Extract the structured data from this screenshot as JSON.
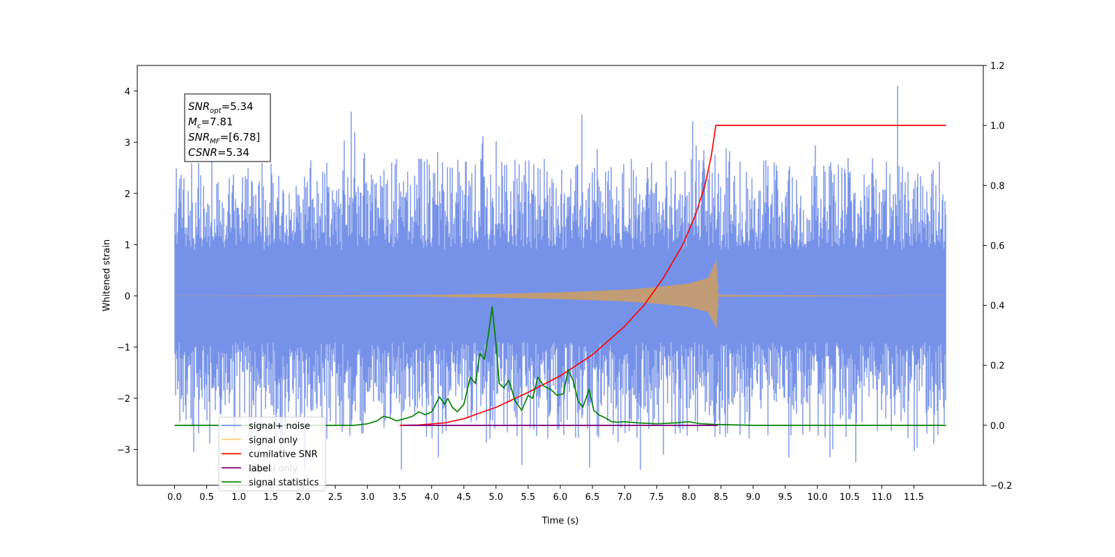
{
  "chart_data": {
    "type": "line",
    "title": "",
    "xlabel": "Time (s)",
    "ylabel": "Whitened strain",
    "y2label": "",
    "xlim": [
      -0.58,
      12.58
    ],
    "ylim": [
      -3.7,
      4.5
    ],
    "y2lim": [
      -0.2,
      1.2
    ],
    "x_ticks": [
      0.0,
      0.5,
      1.0,
      1.5,
      2.0,
      2.5,
      3.0,
      3.5,
      4.0,
      4.5,
      5.0,
      5.5,
      6.0,
      6.5,
      7.0,
      7.5,
      8.0,
      8.5,
      9.0,
      9.5,
      10.0,
      10.5,
      11.0,
      11.5
    ],
    "x_tick_labels": [
      "0.0",
      "0.5",
      "1.0",
      "1.5",
      "2.0",
      "2.5",
      "3.0",
      "3.5",
      "4.0",
      "4.5",
      "5.0",
      "5.5",
      "6.0",
      "6.5",
      "7.0",
      "7.5",
      "8.0",
      "8.5",
      "9.0",
      "9.5",
      "10.0",
      "10.5",
      "11.0",
      "11.5"
    ],
    "y_ticks": [
      -3,
      -2,
      -1,
      0,
      1,
      2,
      3,
      4
    ],
    "y_tick_labels": [
      "−3",
      "−2",
      "−1",
      "0",
      "1",
      "2",
      "3",
      "4"
    ],
    "y2_ticks": [
      -0.2,
      0.0,
      0.2,
      0.4,
      0.6,
      0.8,
      1.0,
      1.2
    ],
    "y2_tick_labels": [
      "−0.2",
      "0.0",
      "0.2",
      "0.4",
      "0.6",
      "0.8",
      "1.0",
      "1.2"
    ],
    "grid": false,
    "legend_position": "bottom-left",
    "annotation": {
      "lines": [
        {
          "sym": "SNR",
          "sub": "opt",
          "val": "=5.34"
        },
        {
          "sym": "M",
          "sub": "c",
          "val": "=7.81"
        },
        {
          "sym": "SNR",
          "sub": "MF",
          "val": "=[6.78]"
        },
        {
          "sym": "CSNR",
          "sub": "",
          "val": "=5.34"
        }
      ]
    },
    "series": [
      {
        "name": "signal+ noise",
        "color": "#6a89e6",
        "axis": "left",
        "kind": "noise",
        "x_range": [
          0.0,
          12.0
        ],
        "envelope": [
          -3.4,
          4.1
        ],
        "notable_spikes": [
          {
            "x": 11.25,
            "y": 4.1
          },
          {
            "x": 2.75,
            "y": 3.6
          },
          {
            "x": 6.45,
            "y": -3.35
          },
          {
            "x": 5.4,
            "y": -3.3
          },
          {
            "x": 0.3,
            "y": -3.05
          },
          {
            "x": 4.1,
            "y": -3.15
          }
        ]
      },
      {
        "name": "signal only",
        "color": "#ffbf5f",
        "axis": "left",
        "kind": "chirp",
        "x_range": [
          0.0,
          12.0
        ],
        "merger_time": 8.43,
        "merger_amplitude": 0.7,
        "points": [
          [
            0.0,
            0.0
          ],
          [
            4.0,
            0.02
          ],
          [
            5.0,
            0.04
          ],
          [
            6.0,
            0.07
          ],
          [
            7.0,
            0.12
          ],
          [
            7.5,
            0.17
          ],
          [
            8.0,
            0.24
          ],
          [
            8.3,
            0.35
          ],
          [
            8.43,
            0.7
          ],
          [
            8.46,
            0.02
          ],
          [
            12.0,
            0.0
          ]
        ]
      },
      {
        "name": "cumilative SNR",
        "color": "#ff0000",
        "axis": "right",
        "kind": "line",
        "points": [
          [
            3.5,
            0.0
          ],
          [
            3.8,
            0.001
          ],
          [
            4.2,
            0.008
          ],
          [
            4.5,
            0.022
          ],
          [
            4.8,
            0.045
          ],
          [
            5.0,
            0.06
          ],
          [
            5.5,
            0.11
          ],
          [
            6.0,
            0.165
          ],
          [
            6.5,
            0.235
          ],
          [
            7.0,
            0.33
          ],
          [
            7.3,
            0.4
          ],
          [
            7.6,
            0.49
          ],
          [
            7.9,
            0.6
          ],
          [
            8.1,
            0.7
          ],
          [
            8.25,
            0.8
          ],
          [
            8.35,
            0.9
          ],
          [
            8.42,
            1.0
          ],
          [
            12.0,
            1.0
          ]
        ]
      },
      {
        "name": "label",
        "color": "#800080",
        "axis": "right",
        "kind": "line",
        "points": [
          [
            3.55,
            0.0
          ],
          [
            8.45,
            0.0
          ]
        ]
      },
      {
        "name": "signal only",
        "color": "#9966cc",
        "axis": "right",
        "kind": "hidden",
        "points": []
      },
      {
        "name": "signal statistics",
        "color": "#008000",
        "axis": "right",
        "kind": "line",
        "points": [
          [
            0.0,
            0.0
          ],
          [
            2.8,
            0.0
          ],
          [
            3.0,
            0.005
          ],
          [
            3.15,
            0.015
          ],
          [
            3.25,
            0.03
          ],
          [
            3.35,
            0.025
          ],
          [
            3.45,
            0.015
          ],
          [
            3.55,
            0.02
          ],
          [
            3.7,
            0.03
          ],
          [
            3.8,
            0.045
          ],
          [
            3.9,
            0.035
          ],
          [
            4.0,
            0.045
          ],
          [
            4.05,
            0.065
          ],
          [
            4.12,
            0.095
          ],
          [
            4.2,
            0.07
          ],
          [
            4.25,
            0.09
          ],
          [
            4.32,
            0.06
          ],
          [
            4.4,
            0.045
          ],
          [
            4.5,
            0.07
          ],
          [
            4.6,
            0.16
          ],
          [
            4.68,
            0.14
          ],
          [
            4.75,
            0.24
          ],
          [
            4.82,
            0.22
          ],
          [
            4.88,
            0.3
          ],
          [
            4.94,
            0.395
          ],
          [
            5.0,
            0.27
          ],
          [
            5.05,
            0.14
          ],
          [
            5.12,
            0.125
          ],
          [
            5.2,
            0.15
          ],
          [
            5.3,
            0.08
          ],
          [
            5.4,
            0.05
          ],
          [
            5.5,
            0.1
          ],
          [
            5.57,
            0.09
          ],
          [
            5.65,
            0.16
          ],
          [
            5.75,
            0.13
          ],
          [
            5.85,
            0.12
          ],
          [
            5.95,
            0.1
          ],
          [
            6.05,
            0.105
          ],
          [
            6.12,
            0.185
          ],
          [
            6.2,
            0.15
          ],
          [
            6.28,
            0.08
          ],
          [
            6.35,
            0.06
          ],
          [
            6.45,
            0.12
          ],
          [
            6.52,
            0.05
          ],
          [
            6.6,
            0.035
          ],
          [
            6.7,
            0.025
          ],
          [
            6.8,
            0.012
          ],
          [
            6.9,
            0.01
          ],
          [
            7.0,
            0.012
          ],
          [
            7.2,
            0.008
          ],
          [
            7.5,
            0.005
          ],
          [
            7.8,
            0.008
          ],
          [
            8.0,
            0.012
          ],
          [
            8.15,
            0.006
          ],
          [
            8.4,
            0.003
          ],
          [
            9.0,
            0.0
          ],
          [
            12.0,
            0.0
          ]
        ]
      }
    ],
    "legend": [
      {
        "label": "signal+ noise",
        "color": "#6a89e6",
        "alpha": 0.9
      },
      {
        "label": "signal only",
        "color": "#ffbf5f",
        "alpha": 0.9
      },
      {
        "label": "cumilative SNR",
        "color": "#ff0000",
        "alpha": 1
      },
      {
        "label": "label",
        "color": "#800080",
        "alpha": 1
      },
      {
        "label": "signal statistics",
        "color": "#008000",
        "alpha": 1
      }
    ],
    "legend_hidden_text": "signal only"
  }
}
